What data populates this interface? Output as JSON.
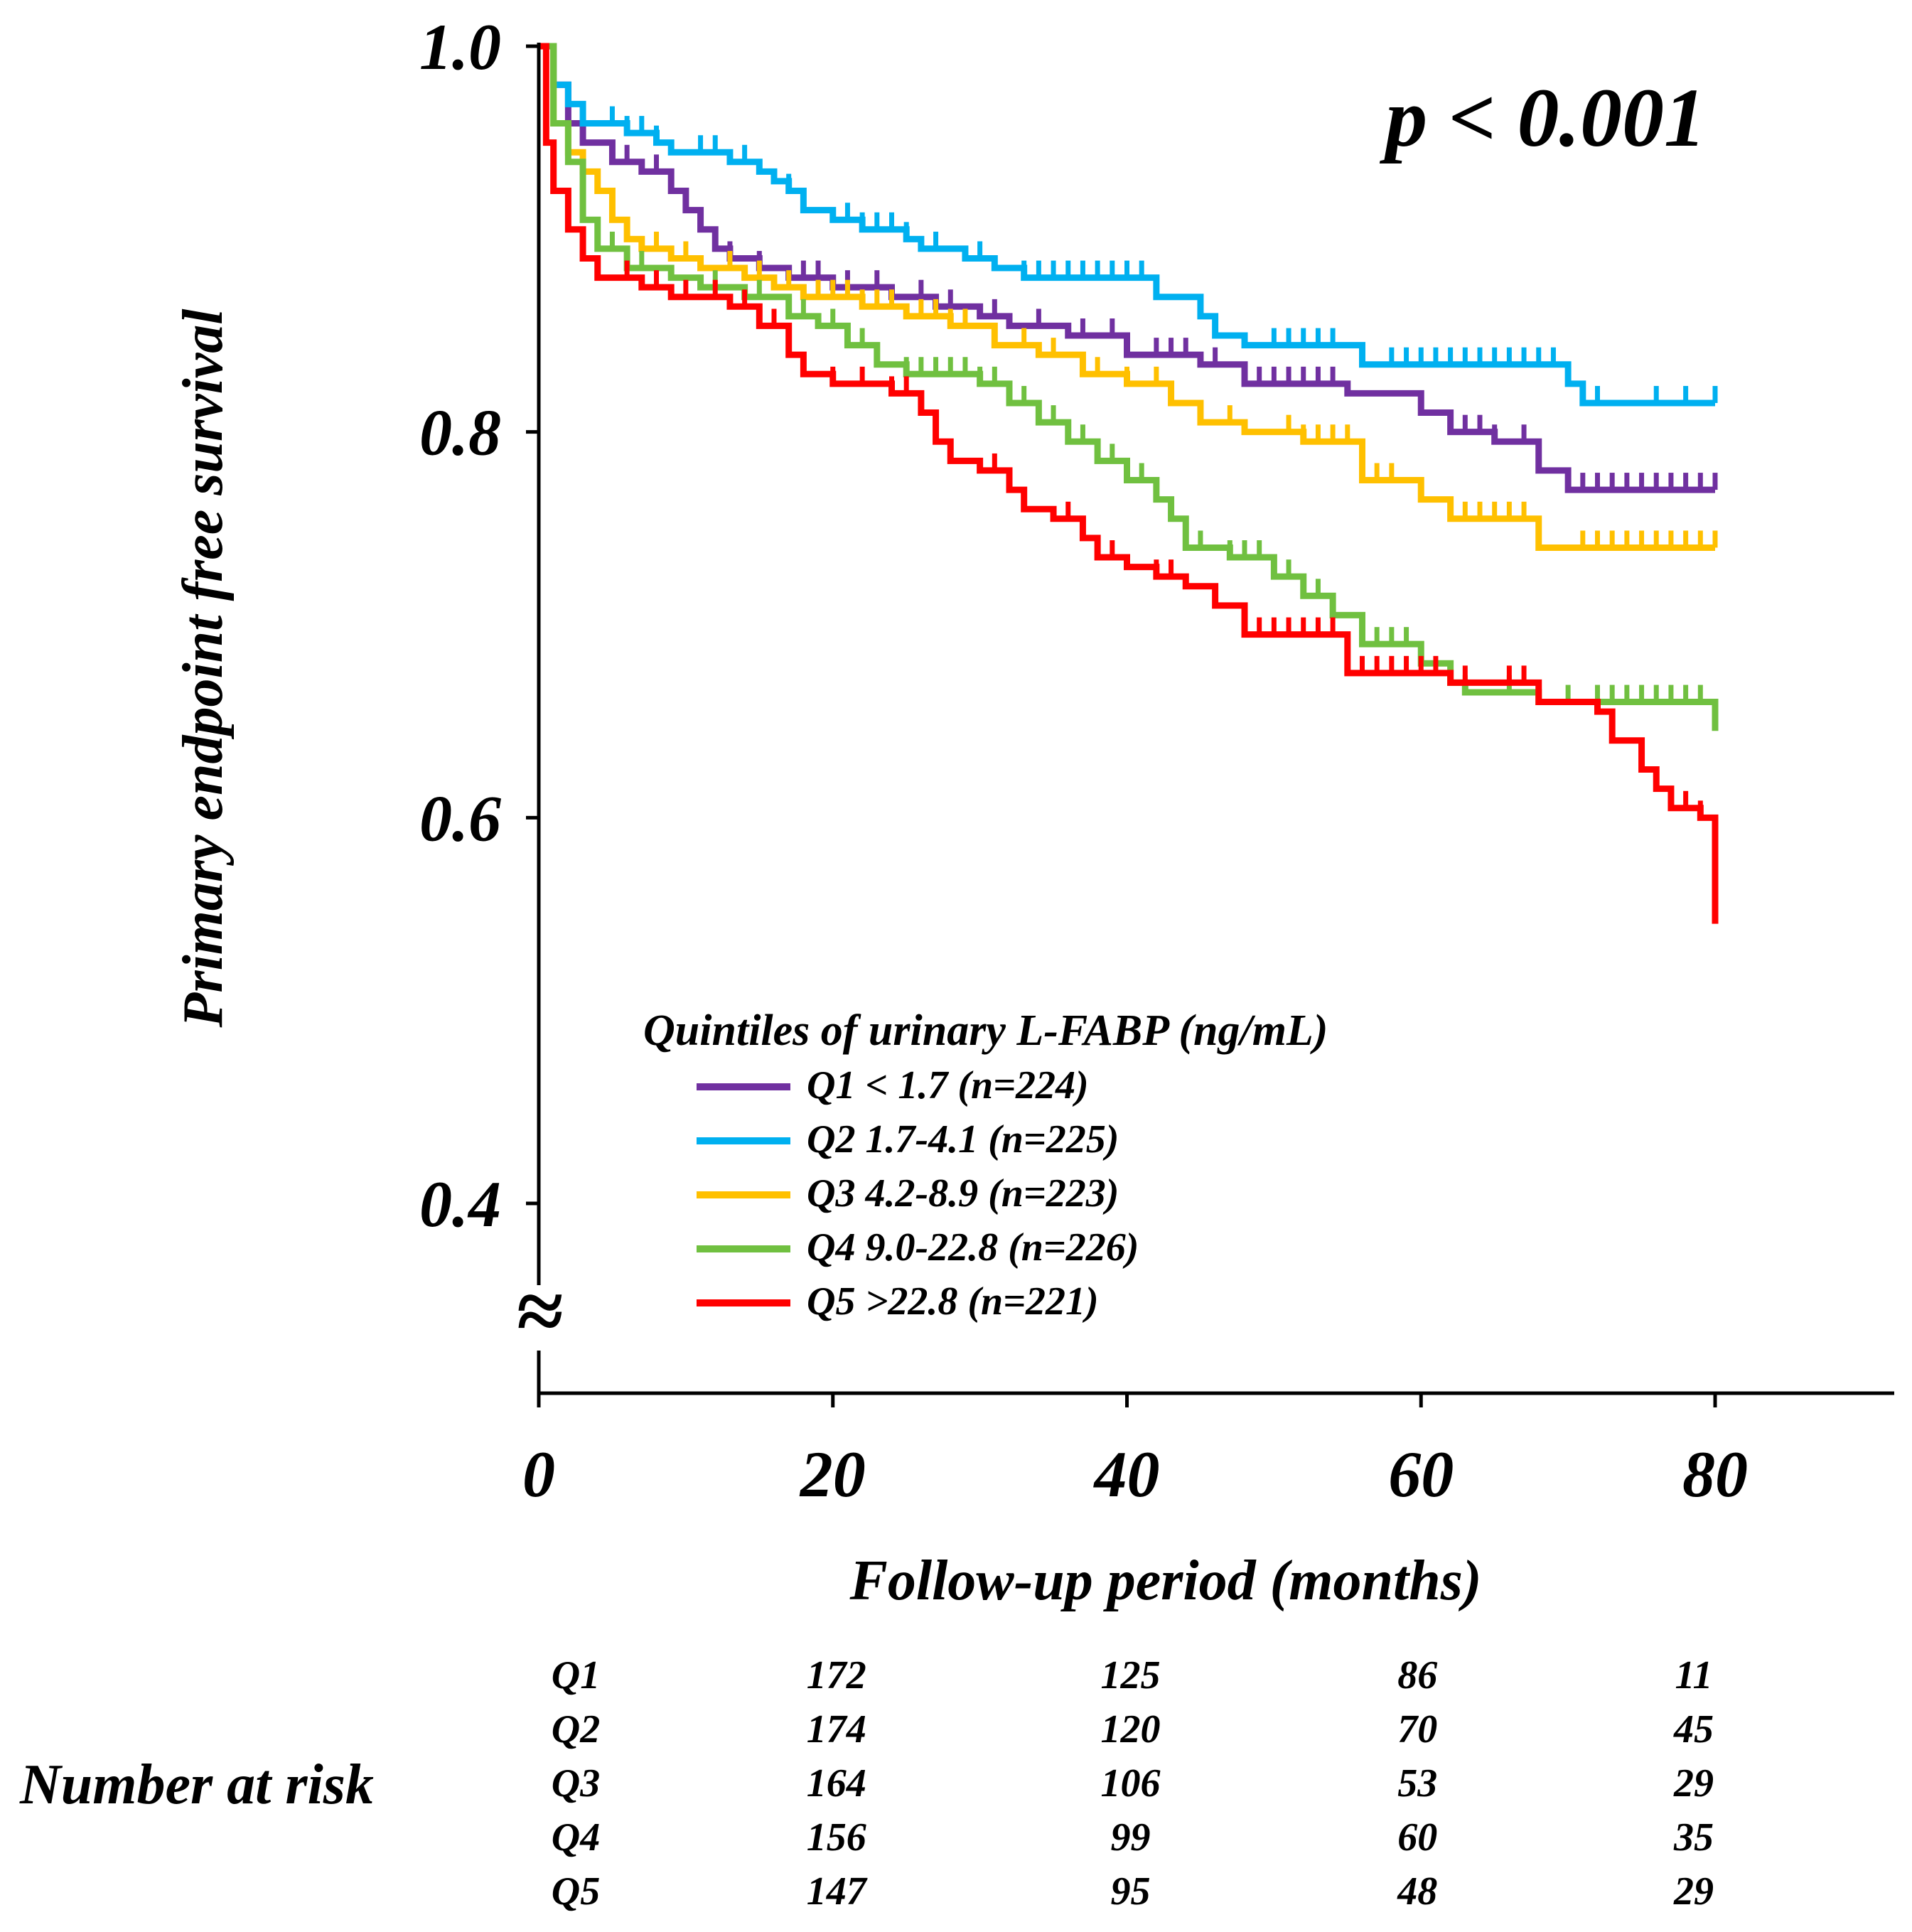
{
  "chart_data": {
    "type": "line",
    "subtype": "kaplan-meier",
    "title": "",
    "xlabel": "Follow-up period (months)",
    "ylabel": "Primary endpoint free survival",
    "xlim": [
      0,
      92
    ],
    "ylim": [
      0.4,
      1.0
    ],
    "y_axis_break": true,
    "break_symbol": "≈",
    "x_ticks": [
      0,
      20,
      40,
      60,
      80
    ],
    "x_tick_labels": [
      "0",
      "20",
      "40",
      "60",
      "80"
    ],
    "y_ticks": [
      0.4,
      0.6,
      0.8,
      1.0
    ],
    "y_tick_labels": [
      "0.4",
      "0.6",
      "0.8",
      "1.0"
    ],
    "grid": false,
    "annotation": "p < 0.001",
    "legend": {
      "title": "Quintiles of urinary L-FABP (ng/mL)",
      "position": "lower-center"
    },
    "series": [
      {
        "name": "Q1 < 1.7 (n=224)",
        "color": "#7030A0",
        "points": [
          [
            0,
            1.0
          ],
          [
            1,
            0.98
          ],
          [
            2,
            0.96
          ],
          [
            3,
            0.95
          ],
          [
            5,
            0.94
          ],
          [
            7,
            0.935
          ],
          [
            9,
            0.925
          ],
          [
            10,
            0.915
          ],
          [
            11,
            0.905
          ],
          [
            12,
            0.895
          ],
          [
            13,
            0.89
          ],
          [
            15,
            0.885
          ],
          [
            17,
            0.88
          ],
          [
            20,
            0.875
          ],
          [
            24,
            0.87
          ],
          [
            27,
            0.865
          ],
          [
            30,
            0.86
          ],
          [
            32,
            0.855
          ],
          [
            36,
            0.85
          ],
          [
            40,
            0.84
          ],
          [
            45,
            0.835
          ],
          [
            48,
            0.825
          ],
          [
            55,
            0.82
          ],
          [
            60,
            0.81
          ],
          [
            62,
            0.8
          ],
          [
            65,
            0.795
          ],
          [
            68,
            0.78
          ],
          [
            70,
            0.77
          ],
          [
            80,
            0.77
          ]
        ],
        "censor_x": [
          6,
          8,
          10,
          13,
          15,
          18,
          19,
          21,
          23,
          26,
          28,
          31,
          34,
          37,
          39,
          42,
          43,
          44,
          46,
          49,
          50,
          51,
          52,
          53,
          54,
          63,
          64,
          65,
          67,
          71,
          72,
          73,
          74,
          75,
          76,
          77,
          78,
          79,
          80
        ]
      },
      {
        "name": "Q2 1.7-4.1 (n=225)",
        "color": "#00B0F0",
        "points": [
          [
            0,
            1.0
          ],
          [
            1,
            0.98
          ],
          [
            2,
            0.97
          ],
          [
            3,
            0.96
          ],
          [
            6,
            0.955
          ],
          [
            8,
            0.95
          ],
          [
            9,
            0.945
          ],
          [
            13,
            0.94
          ],
          [
            15,
            0.935
          ],
          [
            16,
            0.93
          ],
          [
            17,
            0.925
          ],
          [
            18,
            0.915
          ],
          [
            20,
            0.91
          ],
          [
            22,
            0.905
          ],
          [
            25,
            0.9
          ],
          [
            26,
            0.895
          ],
          [
            29,
            0.89
          ],
          [
            31,
            0.885
          ],
          [
            33,
            0.88
          ],
          [
            42,
            0.87
          ],
          [
            45,
            0.86
          ],
          [
            46,
            0.85
          ],
          [
            48,
            0.845
          ],
          [
            56,
            0.835
          ],
          [
            70,
            0.825
          ],
          [
            71,
            0.815
          ],
          [
            80,
            0.815
          ]
        ],
        "censor_x": [
          5,
          6,
          7,
          8,
          11,
          12,
          14,
          17,
          21,
          22,
          23,
          24,
          25,
          27,
          30,
          33,
          34,
          35,
          36,
          37,
          38,
          39,
          40,
          41,
          50,
          51,
          52,
          53,
          54,
          58,
          59,
          60,
          61,
          62,
          63,
          64,
          65,
          66,
          67,
          68,
          69,
          72,
          76,
          78,
          80
        ]
      },
      {
        "name": "Q3 4.2-8.9 (n=223)",
        "color": "#FFC000",
        "points": [
          [
            0,
            1.0
          ],
          [
            1,
            0.96
          ],
          [
            2,
            0.945
          ],
          [
            3,
            0.935
          ],
          [
            4,
            0.925
          ],
          [
            5,
            0.91
          ],
          [
            6,
            0.9
          ],
          [
            7,
            0.895
          ],
          [
            9,
            0.89
          ],
          [
            11,
            0.885
          ],
          [
            14,
            0.88
          ],
          [
            16,
            0.875
          ],
          [
            18,
            0.87
          ],
          [
            22,
            0.865
          ],
          [
            25,
            0.86
          ],
          [
            28,
            0.855
          ],
          [
            31,
            0.845
          ],
          [
            34,
            0.84
          ],
          [
            37,
            0.83
          ],
          [
            40,
            0.825
          ],
          [
            43,
            0.815
          ],
          [
            45,
            0.805
          ],
          [
            48,
            0.8
          ],
          [
            52,
            0.795
          ],
          [
            56,
            0.775
          ],
          [
            60,
            0.765
          ],
          [
            62,
            0.755
          ],
          [
            68,
            0.74
          ],
          [
            80,
            0.74
          ]
        ],
        "censor_x": [
          8,
          10,
          13,
          15,
          17,
          19,
          20,
          21,
          22,
          23,
          24,
          26,
          27,
          28,
          29,
          33,
          35,
          38,
          40,
          42,
          47,
          51,
          52,
          53,
          54,
          55,
          57,
          58,
          63,
          64,
          65,
          66,
          67,
          71,
          72,
          73,
          74,
          75,
          76,
          77,
          78,
          79,
          80
        ]
      },
      {
        "name": "Q4 9.0-22.8 (n=226)",
        "color": "#70C040",
        "points": [
          [
            0,
            1.0
          ],
          [
            1,
            0.96
          ],
          [
            2,
            0.94
          ],
          [
            3,
            0.91
          ],
          [
            4,
            0.895
          ],
          [
            6,
            0.885
          ],
          [
            9,
            0.88
          ],
          [
            11,
            0.875
          ],
          [
            14,
            0.87
          ],
          [
            17,
            0.86
          ],
          [
            19,
            0.855
          ],
          [
            21,
            0.845
          ],
          [
            23,
            0.835
          ],
          [
            25,
            0.83
          ],
          [
            30,
            0.825
          ],
          [
            32,
            0.815
          ],
          [
            34,
            0.805
          ],
          [
            36,
            0.795
          ],
          [
            38,
            0.785
          ],
          [
            40,
            0.775
          ],
          [
            42,
            0.765
          ],
          [
            43,
            0.755
          ],
          [
            44,
            0.74
          ],
          [
            47,
            0.735
          ],
          [
            50,
            0.725
          ],
          [
            52,
            0.715
          ],
          [
            54,
            0.705
          ],
          [
            56,
            0.69
          ],
          [
            60,
            0.68
          ],
          [
            62,
            0.67
          ],
          [
            63,
            0.665
          ],
          [
            68,
            0.66
          ],
          [
            80,
            0.66
          ],
          [
            80,
            0.645
          ]
        ],
        "censor_x": [
          5,
          7,
          12,
          15,
          17,
          18,
          20,
          22,
          25,
          26,
          27,
          28,
          29,
          30,
          31,
          33,
          35,
          37,
          39,
          41,
          45,
          47,
          48,
          49,
          51,
          52,
          53,
          57,
          58,
          59,
          63,
          66,
          68,
          70,
          72,
          73,
          74,
          75,
          76,
          77,
          78,
          79
        ]
      },
      {
        "name": "Q5 >22.8 (n=221)",
        "color": "#FF0000",
        "points": [
          [
            0,
            1.0
          ],
          [
            0.5,
            0.95
          ],
          [
            1,
            0.925
          ],
          [
            2,
            0.905
          ],
          [
            3,
            0.89
          ],
          [
            4,
            0.88
          ],
          [
            7,
            0.875
          ],
          [
            9,
            0.87
          ],
          [
            13,
            0.865
          ],
          [
            15,
            0.855
          ],
          [
            17,
            0.84
          ],
          [
            18,
            0.83
          ],
          [
            20,
            0.825
          ],
          [
            24,
            0.82
          ],
          [
            26,
            0.81
          ],
          [
            27,
            0.795
          ],
          [
            28,
            0.785
          ],
          [
            30,
            0.78
          ],
          [
            32,
            0.77
          ],
          [
            33,
            0.76
          ],
          [
            35,
            0.755
          ],
          [
            37,
            0.745
          ],
          [
            38,
            0.735
          ],
          [
            40,
            0.73
          ],
          [
            42,
            0.725
          ],
          [
            44,
            0.72
          ],
          [
            46,
            0.71
          ],
          [
            48,
            0.695
          ],
          [
            55,
            0.675
          ],
          [
            62,
            0.67
          ],
          [
            68,
            0.66
          ],
          [
            72,
            0.655
          ],
          [
            73,
            0.64
          ],
          [
            75,
            0.625
          ],
          [
            76,
            0.615
          ],
          [
            77,
            0.605
          ],
          [
            79,
            0.6
          ],
          [
            80,
            0.545
          ]
        ],
        "censor_x": [
          6,
          8,
          10,
          12,
          14,
          16,
          20,
          22,
          24,
          25,
          31,
          36,
          39,
          42,
          43,
          49,
          50,
          51,
          52,
          53,
          54,
          56,
          57,
          58,
          59,
          60,
          61,
          63,
          66,
          67,
          78,
          79
        ]
      }
    ],
    "number_at_risk": {
      "title": "Number at risk",
      "x": [
        20,
        40,
        60,
        80
      ],
      "rows": [
        {
          "label": "Q1",
          "values": [
            172,
            125,
            86,
            11
          ]
        },
        {
          "label": "Q2",
          "values": [
            174,
            120,
            70,
            45
          ]
        },
        {
          "label": "Q3",
          "values": [
            164,
            106,
            53,
            29
          ]
        },
        {
          "label": "Q4",
          "values": [
            156,
            99,
            60,
            35
          ]
        },
        {
          "label": "Q5",
          "values": [
            147,
            95,
            48,
            29
          ]
        }
      ]
    }
  }
}
